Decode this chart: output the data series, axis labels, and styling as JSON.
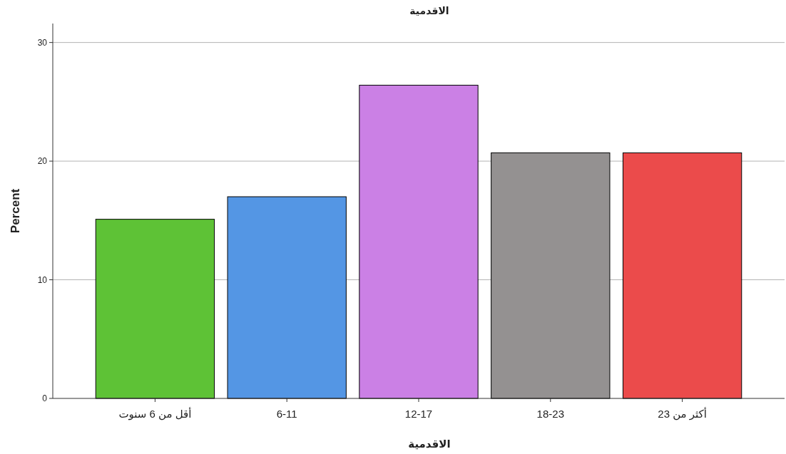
{
  "chart_data": {
    "type": "bar",
    "title": "الاقدمية",
    "xlabel": "الاقدمية",
    "ylabel": "Percent",
    "categories": [
      "أقل من 6 سنوت",
      "6-11",
      "12-17",
      "18-23",
      "أكثر من 23"
    ],
    "values": [
      15.1,
      17.0,
      26.4,
      20.7,
      20.7
    ],
    "colors": [
      "#5ec236",
      "#5496e4",
      "#cb80e5",
      "#949191",
      "#eb4b4b"
    ],
    "ylim": [
      0,
      31.6
    ],
    "yticks": [
      0,
      10,
      20,
      30
    ],
    "grid": "y"
  }
}
